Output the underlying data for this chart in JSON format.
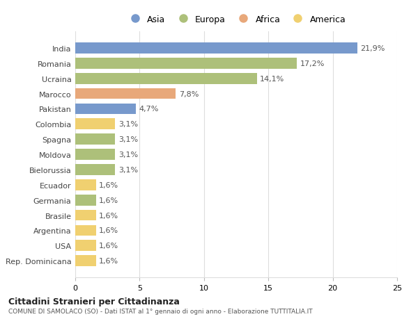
{
  "categories": [
    "India",
    "Romania",
    "Ucraina",
    "Marocco",
    "Pakistan",
    "Colombia",
    "Spagna",
    "Moldova",
    "Bielorussia",
    "Ecuador",
    "Germania",
    "Brasile",
    "Argentina",
    "USA",
    "Rep. Dominicana"
  ],
  "values": [
    21.9,
    17.2,
    14.1,
    7.8,
    4.7,
    3.1,
    3.1,
    3.1,
    3.1,
    1.6,
    1.6,
    1.6,
    1.6,
    1.6,
    1.6
  ],
  "labels": [
    "21,9%",
    "17,2%",
    "14,1%",
    "7,8%",
    "4,7%",
    "3,1%",
    "3,1%",
    "3,1%",
    "3,1%",
    "1,6%",
    "1,6%",
    "1,6%",
    "1,6%",
    "1,6%",
    "1,6%"
  ],
  "colors": [
    "#7799cc",
    "#adc07a",
    "#adc07a",
    "#e8a87a",
    "#7799cc",
    "#f0d070",
    "#adc07a",
    "#adc07a",
    "#adc07a",
    "#f0d070",
    "#adc07a",
    "#f0d070",
    "#f0d070",
    "#f0d070",
    "#f0d070"
  ],
  "legend_labels": [
    "Asia",
    "Europa",
    "Africa",
    "America"
  ],
  "legend_colors": [
    "#7799cc",
    "#adc07a",
    "#e8a87a",
    "#f0d070"
  ],
  "title1": "Cittadini Stranieri per Cittadinanza",
  "title2": "COMUNE DI SAMOLACO (SO) - Dati ISTAT al 1° gennaio di ogni anno - Elaborazione TUTTITALIA.IT",
  "xlim": [
    0,
    25
  ],
  "xticks": [
    0,
    5,
    10,
    15,
    20,
    25
  ],
  "bg_color": "#ffffff",
  "grid_color": "#dddddd",
  "bar_height": 0.72,
  "label_fontsize": 8,
  "tick_fontsize": 8
}
